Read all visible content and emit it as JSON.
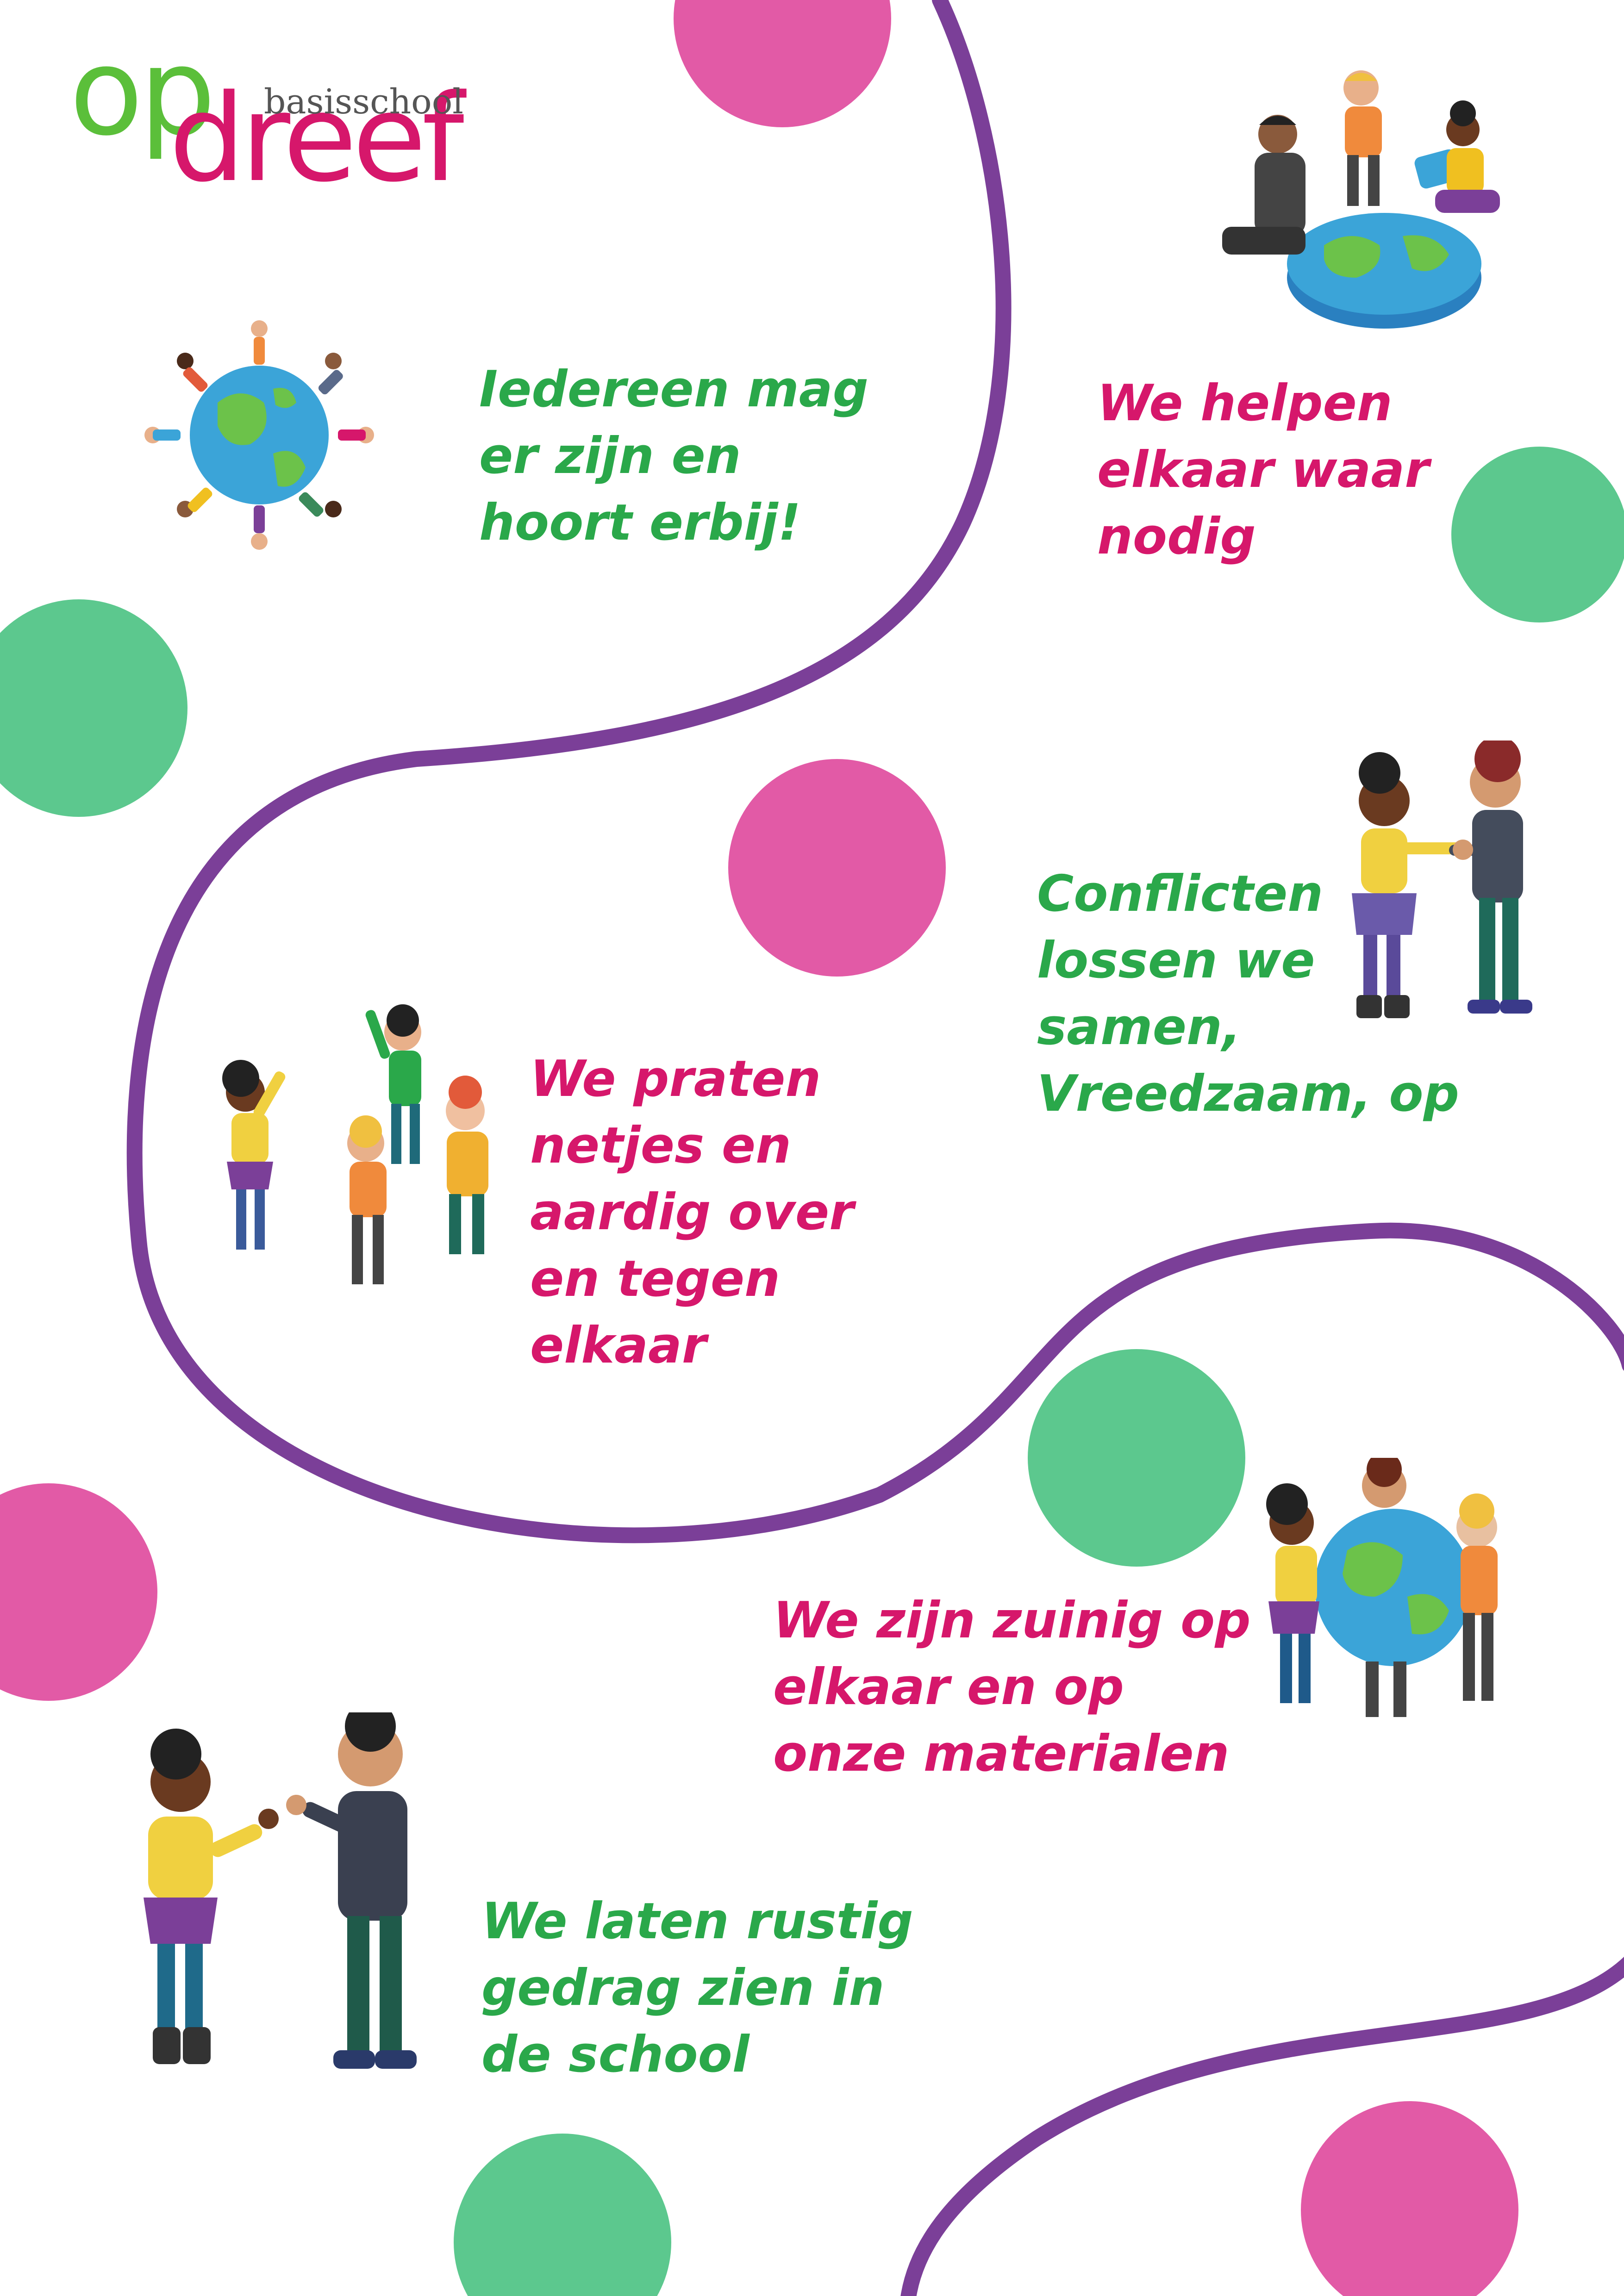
{
  "logo": {
    "op": "op",
    "dreef": "dreef",
    "basisschool": "basisschool"
  },
  "rules": [
    {
      "text": "Iedereen mag\ner zijn en\nhoort erbij!",
      "color": "#2aa84a",
      "illustration": "children-around-globe"
    },
    {
      "text": "We helpen\nelkaar waar\nnodig",
      "color": "#d6176b",
      "illustration": "children-building-puzzle-globe"
    },
    {
      "text": "Conflicten\nlossen we\nsamen,\nVreedzaam, op",
      "color": "#2aa84a",
      "illustration": "two-children-shaking-hands"
    },
    {
      "text": "We praten\nnetjes en\naardig over\nen tegen\nelkaar",
      "color": "#d6176b",
      "illustration": "group-of-children-talking"
    },
    {
      "text": "We zijn zuinig op\nelkaar en op\nonze materialen",
      "color": "#d6176b",
      "illustration": "children-hugging-globe"
    },
    {
      "text": "We laten rustig\ngedrag zien in\nde school",
      "color": "#2aa84a",
      "illustration": "two-children-thumbs-up"
    }
  ],
  "colors": {
    "ribbon": "#7b3f98",
    "dot_pink": "#e25aa6",
    "dot_green": "#5cc88e",
    "green_text": "#2aa84a",
    "pink_text": "#d6176b"
  }
}
